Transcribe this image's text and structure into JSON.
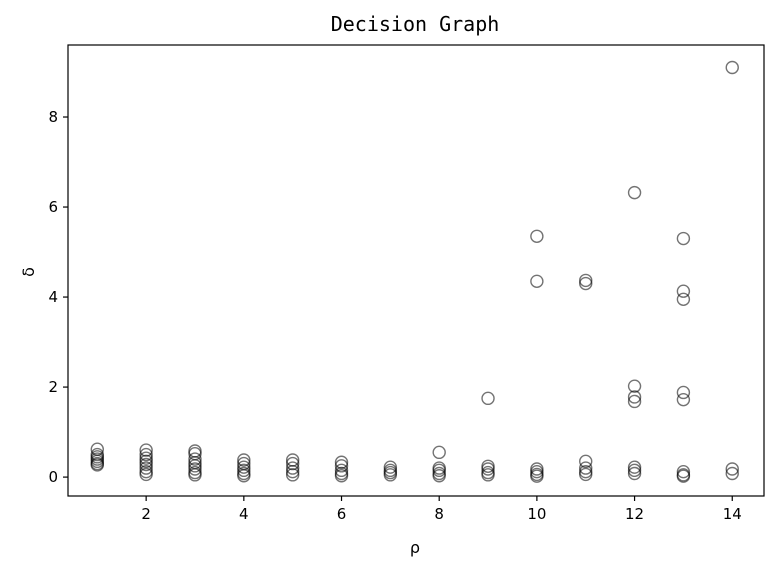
{
  "chart_data": {
    "type": "scatter",
    "title": "Decision Graph",
    "xlabel": "ρ",
    "ylabel": "δ",
    "xlim": [
      0.4,
      14.65
    ],
    "ylim": [
      -0.42,
      9.6
    ],
    "xticks": [
      2,
      4,
      6,
      8,
      10,
      12,
      14
    ],
    "yticks": [
      0,
      2,
      4,
      6,
      8
    ],
    "grid": false,
    "marker": "open-circle",
    "marker_color": "#000000",
    "points": [
      {
        "x": 1,
        "y": 0.62
      },
      {
        "x": 1,
        "y": 0.5
      },
      {
        "x": 1,
        "y": 0.45
      },
      {
        "x": 1,
        "y": 0.4
      },
      {
        "x": 1,
        "y": 0.35
      },
      {
        "x": 1,
        "y": 0.3
      },
      {
        "x": 1,
        "y": 0.27
      },
      {
        "x": 2,
        "y": 0.6
      },
      {
        "x": 2,
        "y": 0.5
      },
      {
        "x": 2,
        "y": 0.42
      },
      {
        "x": 2,
        "y": 0.35
      },
      {
        "x": 2,
        "y": 0.28
      },
      {
        "x": 2,
        "y": 0.2
      },
      {
        "x": 2,
        "y": 0.12
      },
      {
        "x": 2,
        "y": 0.06
      },
      {
        "x": 3,
        "y": 0.58
      },
      {
        "x": 3,
        "y": 0.52
      },
      {
        "x": 3,
        "y": 0.4
      },
      {
        "x": 3,
        "y": 0.32
      },
      {
        "x": 3,
        "y": 0.25
      },
      {
        "x": 3,
        "y": 0.18
      },
      {
        "x": 3,
        "y": 0.1
      },
      {
        "x": 3,
        "y": 0.05
      },
      {
        "x": 4,
        "y": 0.38
      },
      {
        "x": 4,
        "y": 0.3
      },
      {
        "x": 4,
        "y": 0.22
      },
      {
        "x": 4,
        "y": 0.15
      },
      {
        "x": 4,
        "y": 0.08
      },
      {
        "x": 4,
        "y": 0.03
      },
      {
        "x": 5,
        "y": 0.38
      },
      {
        "x": 5,
        "y": 0.3
      },
      {
        "x": 5,
        "y": 0.2
      },
      {
        "x": 5,
        "y": 0.12
      },
      {
        "x": 5,
        "y": 0.05
      },
      {
        "x": 6,
        "y": 0.33
      },
      {
        "x": 6,
        "y": 0.25
      },
      {
        "x": 6,
        "y": 0.15
      },
      {
        "x": 6,
        "y": 0.08
      },
      {
        "x": 6,
        "y": 0.03
      },
      {
        "x": 7,
        "y": 0.22
      },
      {
        "x": 7,
        "y": 0.15
      },
      {
        "x": 7,
        "y": 0.1
      },
      {
        "x": 7,
        "y": 0.05
      },
      {
        "x": 8,
        "y": 0.55
      },
      {
        "x": 8,
        "y": 0.2
      },
      {
        "x": 8,
        "y": 0.15
      },
      {
        "x": 8,
        "y": 0.08
      },
      {
        "x": 8,
        "y": 0.03
      },
      {
        "x": 9,
        "y": 1.75
      },
      {
        "x": 9,
        "y": 0.24
      },
      {
        "x": 9,
        "y": 0.18
      },
      {
        "x": 9,
        "y": 0.1
      },
      {
        "x": 9,
        "y": 0.05
      },
      {
        "x": 10,
        "y": 5.35
      },
      {
        "x": 10,
        "y": 4.35
      },
      {
        "x": 10,
        "y": 0.18
      },
      {
        "x": 10,
        "y": 0.12
      },
      {
        "x": 10,
        "y": 0.06
      },
      {
        "x": 10,
        "y": 0.02
      },
      {
        "x": 11,
        "y": 4.37
      },
      {
        "x": 11,
        "y": 4.3
      },
      {
        "x": 11,
        "y": 0.35
      },
      {
        "x": 11,
        "y": 0.2
      },
      {
        "x": 11,
        "y": 0.12
      },
      {
        "x": 11,
        "y": 0.06
      },
      {
        "x": 12,
        "y": 6.32
      },
      {
        "x": 12,
        "y": 2.02
      },
      {
        "x": 12,
        "y": 1.78
      },
      {
        "x": 12,
        "y": 1.68
      },
      {
        "x": 12,
        "y": 0.22
      },
      {
        "x": 12,
        "y": 0.15
      },
      {
        "x": 12,
        "y": 0.08
      },
      {
        "x": 13,
        "y": 5.3
      },
      {
        "x": 13,
        "y": 4.13
      },
      {
        "x": 13,
        "y": 3.95
      },
      {
        "x": 13,
        "y": 1.88
      },
      {
        "x": 13,
        "y": 1.72
      },
      {
        "x": 13,
        "y": 0.12
      },
      {
        "x": 13,
        "y": 0.05
      },
      {
        "x": 13,
        "y": 0.02
      },
      {
        "x": 14,
        "y": 9.1
      },
      {
        "x": 14,
        "y": 0.18
      },
      {
        "x": 14,
        "y": 0.08
      }
    ]
  }
}
